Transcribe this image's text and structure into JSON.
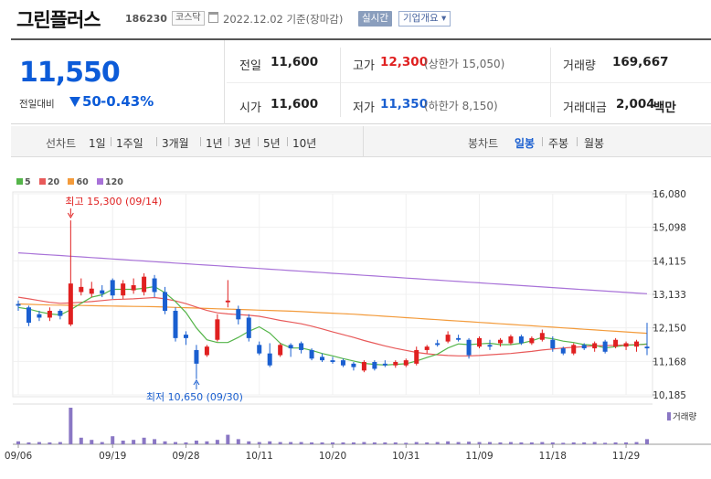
{
  "header": {
    "name": "그린플러스",
    "code": "186230",
    "market": "코스닥",
    "date": "2022.12.02 기준(장마감)",
    "realtime_label": "실시간",
    "overview_label": "기업개요 ▾"
  },
  "summary": {
    "current_price": "11,550",
    "prev_compare_label": "전일대비",
    "change_amount": "50",
    "change_rate": "-0.43%",
    "stats": {
      "prev_close": {
        "label": "전일",
        "value": "11,600"
      },
      "high": {
        "label": "고가",
        "value": "12,300",
        "sub": "(상한가 15,050)"
      },
      "volume": {
        "label": "거래량",
        "value": "169,667"
      },
      "open": {
        "label": "시가",
        "value": "11,600"
      },
      "low": {
        "label": "저가",
        "value": "11,350",
        "sub": "(하한가 8,150)"
      },
      "amount": {
        "label": "거래대금",
        "value": "2,004",
        "unit": "백만"
      }
    }
  },
  "periods": {
    "line_chart_label": "선차트",
    "line_items": [
      "1일",
      "1주일",
      "3개월",
      "1년",
      "3년",
      "5년",
      "10년"
    ],
    "candle_chart_label": "봉차트",
    "candle_items": [
      "일봉",
      "주봉",
      "월봉"
    ],
    "active_candle": "일봉"
  },
  "colors": {
    "up": "#e02020",
    "down": "#1a5fd0",
    "ma5": "#55b54a",
    "ma20": "#e85a5a",
    "ma60": "#f39b3b",
    "ma120": "#a872d8",
    "volume": "#8a77c4"
  },
  "chart_data": {
    "type": "candlestick",
    "legend": [
      {
        "name": "5",
        "color": "#55b54a"
      },
      {
        "name": "20",
        "color": "#e85a5a"
      },
      {
        "name": "60",
        "color": "#f39b3b"
      },
      {
        "name": "120",
        "color": "#a872d8"
      }
    ],
    "y_ticks": [
      "16,080",
      "15,098",
      "14,115",
      "13,133",
      "12,150",
      "11,168",
      "10,185"
    ],
    "ylim": [
      10185,
      16080
    ],
    "x_ticks": [
      {
        "label": "09/06",
        "index": 0
      },
      {
        "label": "09/19",
        "index": 9
      },
      {
        "label": "09/28",
        "index": 16
      },
      {
        "label": "10/11",
        "index": 23
      },
      {
        "label": "10/20",
        "index": 30
      },
      {
        "label": "10/31",
        "index": 37
      },
      {
        "label": "11/09",
        "index": 44
      },
      {
        "label": "11/18",
        "index": 51
      },
      {
        "label": "11/29",
        "index": 58
      }
    ],
    "annotations": {
      "high": {
        "text": "최고 15,300 (09/14)",
        "index": 5,
        "value": 15300
      },
      "low": {
        "text": "최저 10,650 (09/30)",
        "index": 17,
        "value": 10650
      }
    },
    "volume_label": "거래량",
    "candles": [
      [
        12850,
        12950,
        12650,
        12800
      ],
      [
        12750,
        12800,
        12200,
        12300
      ],
      [
        12550,
        12650,
        12350,
        12450
      ],
      [
        12450,
        12750,
        12350,
        12650
      ],
      [
        12650,
        12700,
        12400,
        12500
      ],
      [
        12250,
        15300,
        12200,
        13450
      ],
      [
        13200,
        13600,
        13100,
        13350
      ],
      [
        13150,
        13500,
        13050,
        13300
      ],
      [
        13250,
        13400,
        13050,
        13150
      ],
      [
        13550,
        13600,
        13000,
        13100
      ],
      [
        13100,
        13550,
        13000,
        13450
      ],
      [
        13250,
        13600,
        13150,
        13400
      ],
      [
        13200,
        13750,
        13100,
        13650
      ],
      [
        13600,
        13700,
        13050,
        13200
      ],
      [
        13200,
        13350,
        12550,
        12650
      ],
      [
        12650,
        12750,
        11750,
        11850
      ],
      [
        11950,
        12050,
        11650,
        11850
      ],
      [
        11500,
        11650,
        10650,
        11100
      ],
      [
        11350,
        11650,
        11300,
        11600
      ],
      [
        11800,
        12550,
        11750,
        12400
      ],
      [
        12900,
        13550,
        12750,
        12950
      ],
      [
        12700,
        12800,
        12250,
        12400
      ],
      [
        12450,
        12550,
        11750,
        11850
      ],
      [
        11650,
        11750,
        11350,
        11400
      ],
      [
        11400,
        11700,
        11000,
        11050
      ],
      [
        11350,
        11700,
        11300,
        11650
      ],
      [
        11650,
        11700,
        11300,
        11550
      ],
      [
        11700,
        11750,
        11400,
        11500
      ],
      [
        11500,
        11550,
        11200,
        11250
      ],
      [
        11300,
        11400,
        11150,
        11200
      ],
      [
        11200,
        11300,
        11100,
        11150
      ],
      [
        11200,
        11250,
        11000,
        11050
      ],
      [
        11100,
        11150,
        10900,
        11000
      ],
      [
        10900,
        11200,
        10850,
        11150
      ],
      [
        11150,
        11200,
        10900,
        10950
      ],
      [
        11100,
        11200,
        11000,
        11050
      ],
      [
        11050,
        11200,
        10980,
        11150
      ],
      [
        11050,
        11250,
        11000,
        11200
      ],
      [
        11100,
        11600,
        11050,
        11500
      ],
      [
        11500,
        11650,
        11400,
        11600
      ],
      [
        11700,
        11800,
        11600,
        11650
      ],
      [
        11750,
        12050,
        11700,
        11950
      ],
      [
        11850,
        11950,
        11750,
        11800
      ],
      [
        11800,
        11850,
        11250,
        11350
      ],
      [
        11600,
        11900,
        11550,
        11850
      ],
      [
        11650,
        11800,
        11500,
        11600
      ],
      [
        11700,
        11850,
        11600,
        11800
      ],
      [
        11700,
        11950,
        11650,
        11900
      ],
      [
        11900,
        11950,
        11650,
        11700
      ],
      [
        11700,
        11900,
        11650,
        11850
      ],
      [
        11800,
        12100,
        11750,
        12000
      ],
      [
        11800,
        11900,
        11450,
        11550
      ],
      [
        11550,
        11600,
        11350,
        11400
      ],
      [
        11400,
        11700,
        11350,
        11650
      ],
      [
        11650,
        11700,
        11500,
        11550
      ],
      [
        11550,
        11750,
        11450,
        11700
      ],
      [
        11750,
        11800,
        11400,
        11450
      ],
      [
        11600,
        11850,
        11550,
        11800
      ],
      [
        11600,
        11750,
        11500,
        11700
      ],
      [
        11600,
        11800,
        11450,
        11750
      ],
      [
        11600,
        12300,
        11350,
        11550
      ]
    ],
    "ma5": [
      12750,
      12700,
      12620,
      12560,
      12530,
      12680,
      12870,
      13050,
      13120,
      13280,
      13280,
      13280,
      13310,
      13360,
      13180,
      12920,
      12600,
      12150,
      11800,
      11720,
      11720,
      11870,
      12050,
      12180,
      12000,
      11700,
      11560,
      11560,
      11490,
      11400,
      11330,
      11250,
      11180,
      11110,
      11080,
      11060,
      11080,
      11100,
      11180,
      11280,
      11380,
      11560,
      11680,
      11660,
      11680,
      11700,
      11660,
      11660,
      11700,
      11770,
      11870,
      11830,
      11760,
      11720,
      11660,
      11640,
      11560,
      11600,
      11640,
      11650,
      11680
    ],
    "ma20": [
      13050,
      13000,
      12950,
      12900,
      12870,
      12880,
      12900,
      12920,
      12950,
      12980,
      12990,
      13000,
      13020,
      13040,
      13000,
      12940,
      12860,
      12760,
      12660,
      12590,
      12560,
      12540,
      12520,
      12490,
      12430,
      12370,
      12320,
      12270,
      12200,
      12120,
      12030,
      11950,
      11870,
      11780,
      11700,
      11620,
      11550,
      11490,
      11430,
      11390,
      11360,
      11340,
      11330,
      11330,
      11340,
      11360,
      11380,
      11400,
      11430,
      11460,
      11500,
      11530,
      11560,
      11580,
      11600,
      11620,
      11630,
      11640,
      11650,
      11660,
      11670
    ],
    "ma60": [
      12850,
      12840,
      12830,
      12820,
      12815,
      12810,
      12805,
      12800,
      12795,
      12790,
      12785,
      12780,
      12775,
      12770,
      12760,
      12750,
      12740,
      12730,
      12720,
      12710,
      12700,
      12690,
      12680,
      12670,
      12660,
      12650,
      12640,
      12625,
      12610,
      12595,
      12580,
      12565,
      12550,
      12530,
      12510,
      12490,
      12470,
      12450,
      12430,
      12410,
      12390,
      12370,
      12350,
      12330,
      12310,
      12290,
      12270,
      12250,
      12230,
      12210,
      12190,
      12170,
      12150,
      12130,
      12110,
      12090,
      12070,
      12050,
      12030,
      12010,
      11990
    ],
    "ma120": [
      14350,
      14330,
      14310,
      14290,
      14270,
      14250,
      14230,
      14210,
      14190,
      14170,
      14150,
      14130,
      14110,
      14090,
      14070,
      14050,
      14030,
      14010,
      13990,
      13970,
      13950,
      13930,
      13910,
      13890,
      13870,
      13850,
      13830,
      13810,
      13790,
      13770,
      13750,
      13730,
      13710,
      13690,
      13670,
      13650,
      13630,
      13610,
      13590,
      13570,
      13550,
      13530,
      13510,
      13490,
      13470,
      13450,
      13430,
      13410,
      13390,
      13370,
      13350,
      13330,
      13310,
      13290,
      13270,
      13250,
      13230,
      13210,
      13190,
      13170,
      13150
    ],
    "volume": [
      8,
      5,
      6,
      5,
      6,
      100,
      18,
      12,
      6,
      22,
      10,
      12,
      18,
      14,
      8,
      6,
      5,
      10,
      8,
      12,
      26,
      14,
      8,
      6,
      8,
      6,
      6,
      6,
      5,
      5,
      5,
      5,
      5,
      6,
      5,
      5,
      5,
      4,
      6,
      5,
      6,
      8,
      6,
      7,
      6,
      6,
      5,
      6,
      5,
      5,
      6,
      5,
      4,
      5,
      5,
      6,
      4,
      5,
      5,
      6,
      14
    ]
  }
}
